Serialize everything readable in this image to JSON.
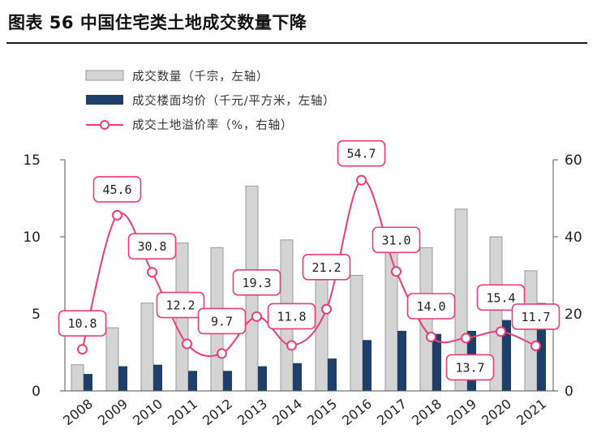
{
  "page": {
    "title": "图表 56 中国住宅类土地成交数量下降"
  },
  "colors": {
    "bar_gray_fill": "#d4d4d4",
    "bar_gray_stroke": "#9a9a9a",
    "bar_navy": "#1e3f6a",
    "line_pink": "#ee3d6e",
    "label_border": "#ee3d6e",
    "axis_line": "#555555"
  },
  "chart_data": {
    "type": "bar",
    "categories": [
      "2008",
      "2009",
      "2010",
      "2011",
      "2012",
      "2013",
      "2014",
      "2015",
      "2016",
      "2017",
      "2018",
      "2019",
      "2020",
      "2021"
    ],
    "series": [
      {
        "name": "成交数量（千宗，左轴）",
        "kind": "bar",
        "axis": "left",
        "values": [
          1.7,
          4.1,
          5.7,
          9.6,
          9.3,
          13.3,
          9.8,
          8.2,
          7.5,
          9.7,
          9.3,
          11.8,
          10.0,
          7.8
        ]
      },
      {
        "name": "成交楼面均价（千元/平方米，左轴）",
        "kind": "bar",
        "axis": "left",
        "values": [
          1.1,
          1.6,
          1.7,
          1.3,
          1.3,
          1.6,
          1.8,
          2.1,
          3.3,
          3.9,
          3.7,
          3.9,
          4.6,
          5.7
        ]
      },
      {
        "name": "成交土地溢价率（%，右轴）",
        "kind": "line",
        "axis": "right",
        "values": [
          10.8,
          45.6,
          30.8,
          12.2,
          9.7,
          19.3,
          11.8,
          21.2,
          54.7,
          31.0,
          14.0,
          13.7,
          15.4,
          11.7
        ],
        "labels": [
          "10.8",
          "45.6",
          "30.8",
          "12.2",
          "9.7",
          "19.3",
          "11.8",
          "21.2",
          "54.7",
          "31.0",
          "14.0",
          "13.7",
          "15.4",
          "11.7"
        ]
      }
    ],
    "y_left": {
      "ylim": [
        0,
        15
      ],
      "ticks": [
        "0",
        "5",
        "10",
        "15"
      ]
    },
    "y_right": {
      "ylim": [
        0,
        60
      ],
      "ticks": [
        "0",
        "20",
        "40",
        "60"
      ]
    },
    "grid": false,
    "legend_position": "top-left"
  }
}
